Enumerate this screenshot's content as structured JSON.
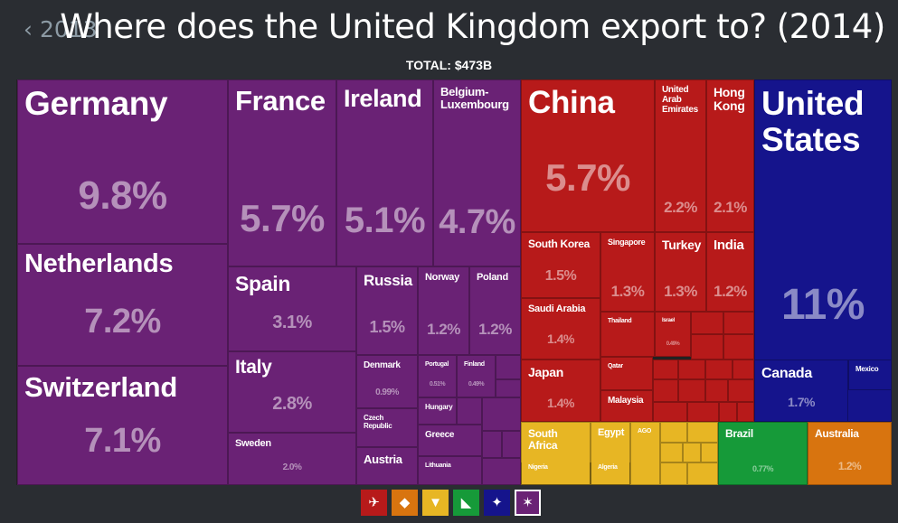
{
  "nav": {
    "back_label": "‹ 2013"
  },
  "header": {
    "title": "Where does the United Kingdom export to? (2014)",
    "total": "TOTAL: $473B"
  },
  "colors": {
    "europe": "#6a2275",
    "asia": "#b71a1a",
    "north_america": "#15148c",
    "africa": "#e7b624",
    "south_america": "#169a39",
    "oceania": "#d8740f"
  },
  "legend": [
    {
      "region": "Asia",
      "icon": "asia-continent-icon",
      "color": "#b71a1a",
      "selected": false
    },
    {
      "region": "Oceania",
      "icon": "oceania-continent-icon",
      "color": "#d8740f",
      "selected": false
    },
    {
      "region": "Africa",
      "icon": "africa-continent-icon",
      "color": "#e7b624",
      "selected": false
    },
    {
      "region": "South America",
      "icon": "south-america-continent-icon",
      "color": "#169a39",
      "selected": false
    },
    {
      "region": "North America",
      "icon": "north-america-continent-icon",
      "color": "#15148c",
      "selected": false
    },
    {
      "region": "Europe",
      "icon": "europe-continent-icon",
      "color": "#6a2275",
      "selected": true
    }
  ],
  "chart_data": {
    "type": "treemap",
    "title": "Where does the United Kingdom export to? (2014)",
    "total": "TOTAL: $473B",
    "items": [
      {
        "name": "Germany",
        "share": "9.8%",
        "region": "europe"
      },
      {
        "name": "Netherlands",
        "share": "7.2%",
        "region": "europe"
      },
      {
        "name": "Switzerland",
        "share": "7.1%",
        "region": "europe"
      },
      {
        "name": "France",
        "share": "5.7%",
        "region": "europe"
      },
      {
        "name": "Ireland",
        "share": "5.1%",
        "region": "europe"
      },
      {
        "name": "Belgium-Luxembourg",
        "share": "4.7%",
        "region": "europe"
      },
      {
        "name": "Spain",
        "share": "3.1%",
        "region": "europe"
      },
      {
        "name": "Italy",
        "share": "2.8%",
        "region": "europe"
      },
      {
        "name": "Sweden",
        "share": "2.0%",
        "region": "europe"
      },
      {
        "name": "Russia",
        "share": "1.5%",
        "region": "europe"
      },
      {
        "name": "Norway",
        "share": "1.2%",
        "region": "europe"
      },
      {
        "name": "Poland",
        "share": "1.2%",
        "region": "europe"
      },
      {
        "name": "Denmark",
        "share": "0.99%",
        "region": "europe"
      },
      {
        "name": "Portugal",
        "share": "0.51%",
        "region": "europe"
      },
      {
        "name": "Finland",
        "share": "0.49%",
        "region": "europe"
      },
      {
        "name": "Czech Republic",
        "share": "",
        "region": "europe"
      },
      {
        "name": "Hungary",
        "share": "",
        "region": "europe"
      },
      {
        "name": "Greece",
        "share": "",
        "region": "europe"
      },
      {
        "name": "Austria",
        "share": "",
        "region": "europe"
      },
      {
        "name": "Lithuania",
        "share": "",
        "region": "europe"
      },
      {
        "name": "China",
        "share": "5.7%",
        "region": "asia"
      },
      {
        "name": "United Arab Emirates",
        "share": "2.2%",
        "region": "asia"
      },
      {
        "name": "Hong Kong",
        "share": "2.1%",
        "region": "asia"
      },
      {
        "name": "South Korea",
        "share": "1.5%",
        "region": "asia"
      },
      {
        "name": "Singapore",
        "share": "1.3%",
        "region": "asia"
      },
      {
        "name": "Turkey",
        "share": "1.3%",
        "region": "asia"
      },
      {
        "name": "India",
        "share": "1.2%",
        "region": "asia"
      },
      {
        "name": "Saudi Arabia",
        "share": "1.4%",
        "region": "asia"
      },
      {
        "name": "Thailand",
        "share": "",
        "region": "asia"
      },
      {
        "name": "Israel",
        "share": "0.49%",
        "region": "asia"
      },
      {
        "name": "Japan",
        "share": "1.4%",
        "region": "asia"
      },
      {
        "name": "Qatar",
        "share": "",
        "region": "asia"
      },
      {
        "name": "Malaysia",
        "share": "",
        "region": "asia"
      },
      {
        "name": "United States",
        "share": "11%",
        "region": "north_america"
      },
      {
        "name": "Canada",
        "share": "1.7%",
        "region": "north_america"
      },
      {
        "name": "Mexico",
        "share": "",
        "region": "north_america"
      },
      {
        "name": "South Africa",
        "share": "",
        "region": "africa"
      },
      {
        "name": "Egypt",
        "share": "",
        "region": "africa"
      },
      {
        "name": "AGO",
        "share": "",
        "region": "africa"
      },
      {
        "name": "Nigeria",
        "share": "",
        "region": "africa"
      },
      {
        "name": "Algeria",
        "share": "",
        "region": "africa"
      },
      {
        "name": "Brazil",
        "share": "0.77%",
        "region": "south_america"
      },
      {
        "name": "Australia",
        "share": "1.2%",
        "region": "oceania"
      }
    ]
  }
}
